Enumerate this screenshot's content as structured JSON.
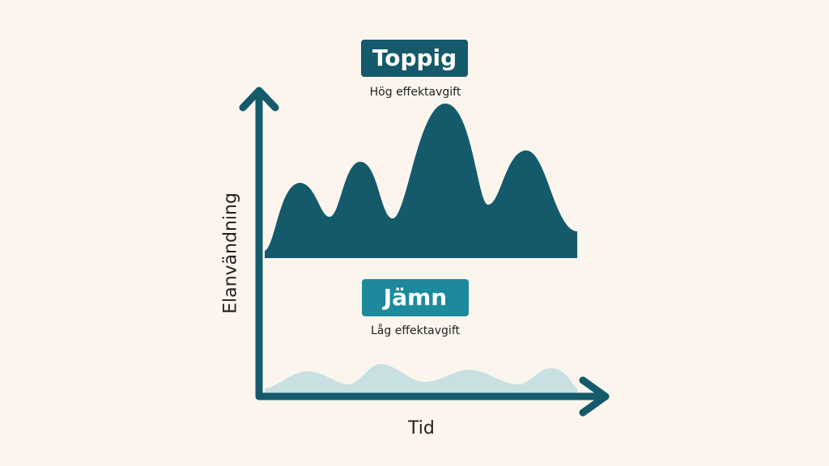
{
  "peaky": {
    "title": "Toppig",
    "subtitle": "Hög effektavgift"
  },
  "flat": {
    "title": "Jämn",
    "subtitle": "Låg effektavgift"
  },
  "axes": {
    "xlabel": "Tid",
    "ylabel": "Elanvändning"
  },
  "colors": {
    "background": "#fbf5ee",
    "axis": "#145a6b",
    "peaky_area": "#145a6b",
    "flat_area": "#c9e0e2",
    "peaky_badge": "#145a6b",
    "flat_badge": "#1c8a9c"
  }
}
